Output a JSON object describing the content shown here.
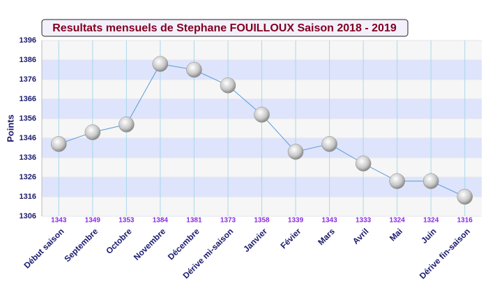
{
  "chart_data": {
    "type": "line",
    "title": "Resultats mensuels de Stephane FOUILLOUX Saison 2018 - 2019",
    "y_label": "Points",
    "categories": [
      "Début saison",
      "Septembre",
      "Octobre",
      "Novembre",
      "Décembre",
      "Dérive mi-saison",
      "Janvier",
      "Févier",
      "Mars",
      "Avril",
      "Mai",
      "Juin",
      "Dérive fin-saison"
    ],
    "series": [
      {
        "name": "Points",
        "color": "#5b9bd5",
        "values": [
          1343,
          1349,
          1353,
          1384,
          1381,
          1373,
          1358,
          1339,
          1343,
          1333,
          1324,
          1324,
          1316
        ]
      }
    ],
    "ylim": [
      1306,
      1396
    ],
    "yticks": [
      1306,
      1316,
      1326,
      1336,
      1346,
      1356,
      1366,
      1376,
      1386,
      1396
    ],
    "grid": true
  }
}
